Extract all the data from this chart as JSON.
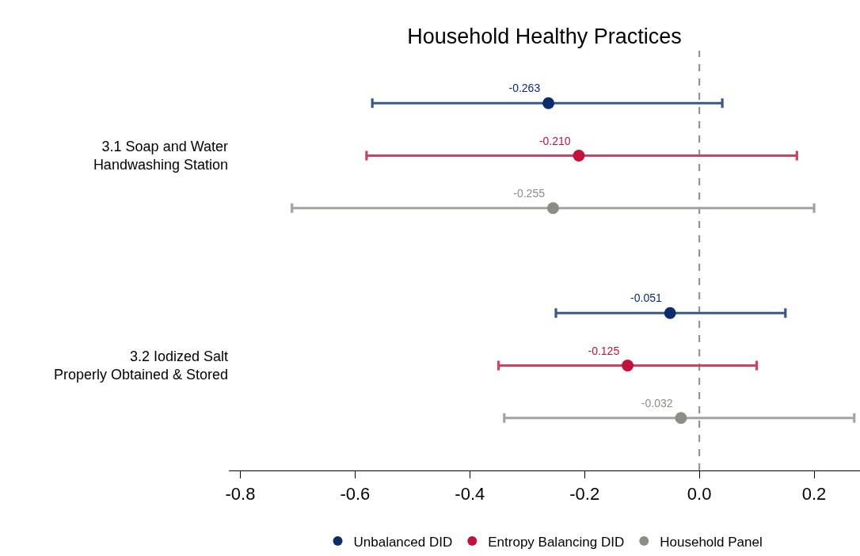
{
  "chart_data": {
    "type": "scatter",
    "title": "Household Healthy Practices",
    "orientation": "horizontal",
    "categories": [
      "3.1 Soap and Water\nHandwashing Station",
      "3.2 Iodized Salt\nProperly Obtained & Stored"
    ],
    "series": [
      {
        "name": "Unbalanced DID",
        "color": "#0b2d6b",
        "values": [
          -0.263,
          -0.051
        ],
        "errors": [
          [
            -0.57,
            0.04
          ],
          [
            -0.25,
            0.15
          ]
        ],
        "value_labels": [
          "-0.263",
          "-0.051"
        ]
      },
      {
        "name": "Entropy Balancing DID",
        "color": "#c0123a",
        "values": [
          -0.21,
          -0.125
        ],
        "errors": [
          [
            -0.58,
            0.17
          ],
          [
            -0.35,
            0.1
          ]
        ],
        "value_labels": [
          "-0.210",
          "-0.125"
        ]
      },
      {
        "name": "Household Panel",
        "color": "#8e8c86",
        "values": [
          -0.255,
          -0.032
        ],
        "errors": [
          [
            -0.71,
            0.2
          ],
          [
            -0.34,
            0.27
          ]
        ],
        "value_labels": [
          "-0.255",
          "-0.032"
        ]
      }
    ],
    "xlim": [
      -0.82,
      0.28
    ],
    "xticks": [
      -0.8,
      -0.6,
      -0.4,
      -0.2,
      {
        "value": 0,
        "label": "0.0"
      },
      0.2
    ],
    "ref_lines": [
      {
        "axis": "x",
        "value": 0,
        "color": "#8c8c8c",
        "line_style": "dashed"
      }
    ],
    "marker": "circle",
    "legend": "bottom",
    "grid": false
  }
}
